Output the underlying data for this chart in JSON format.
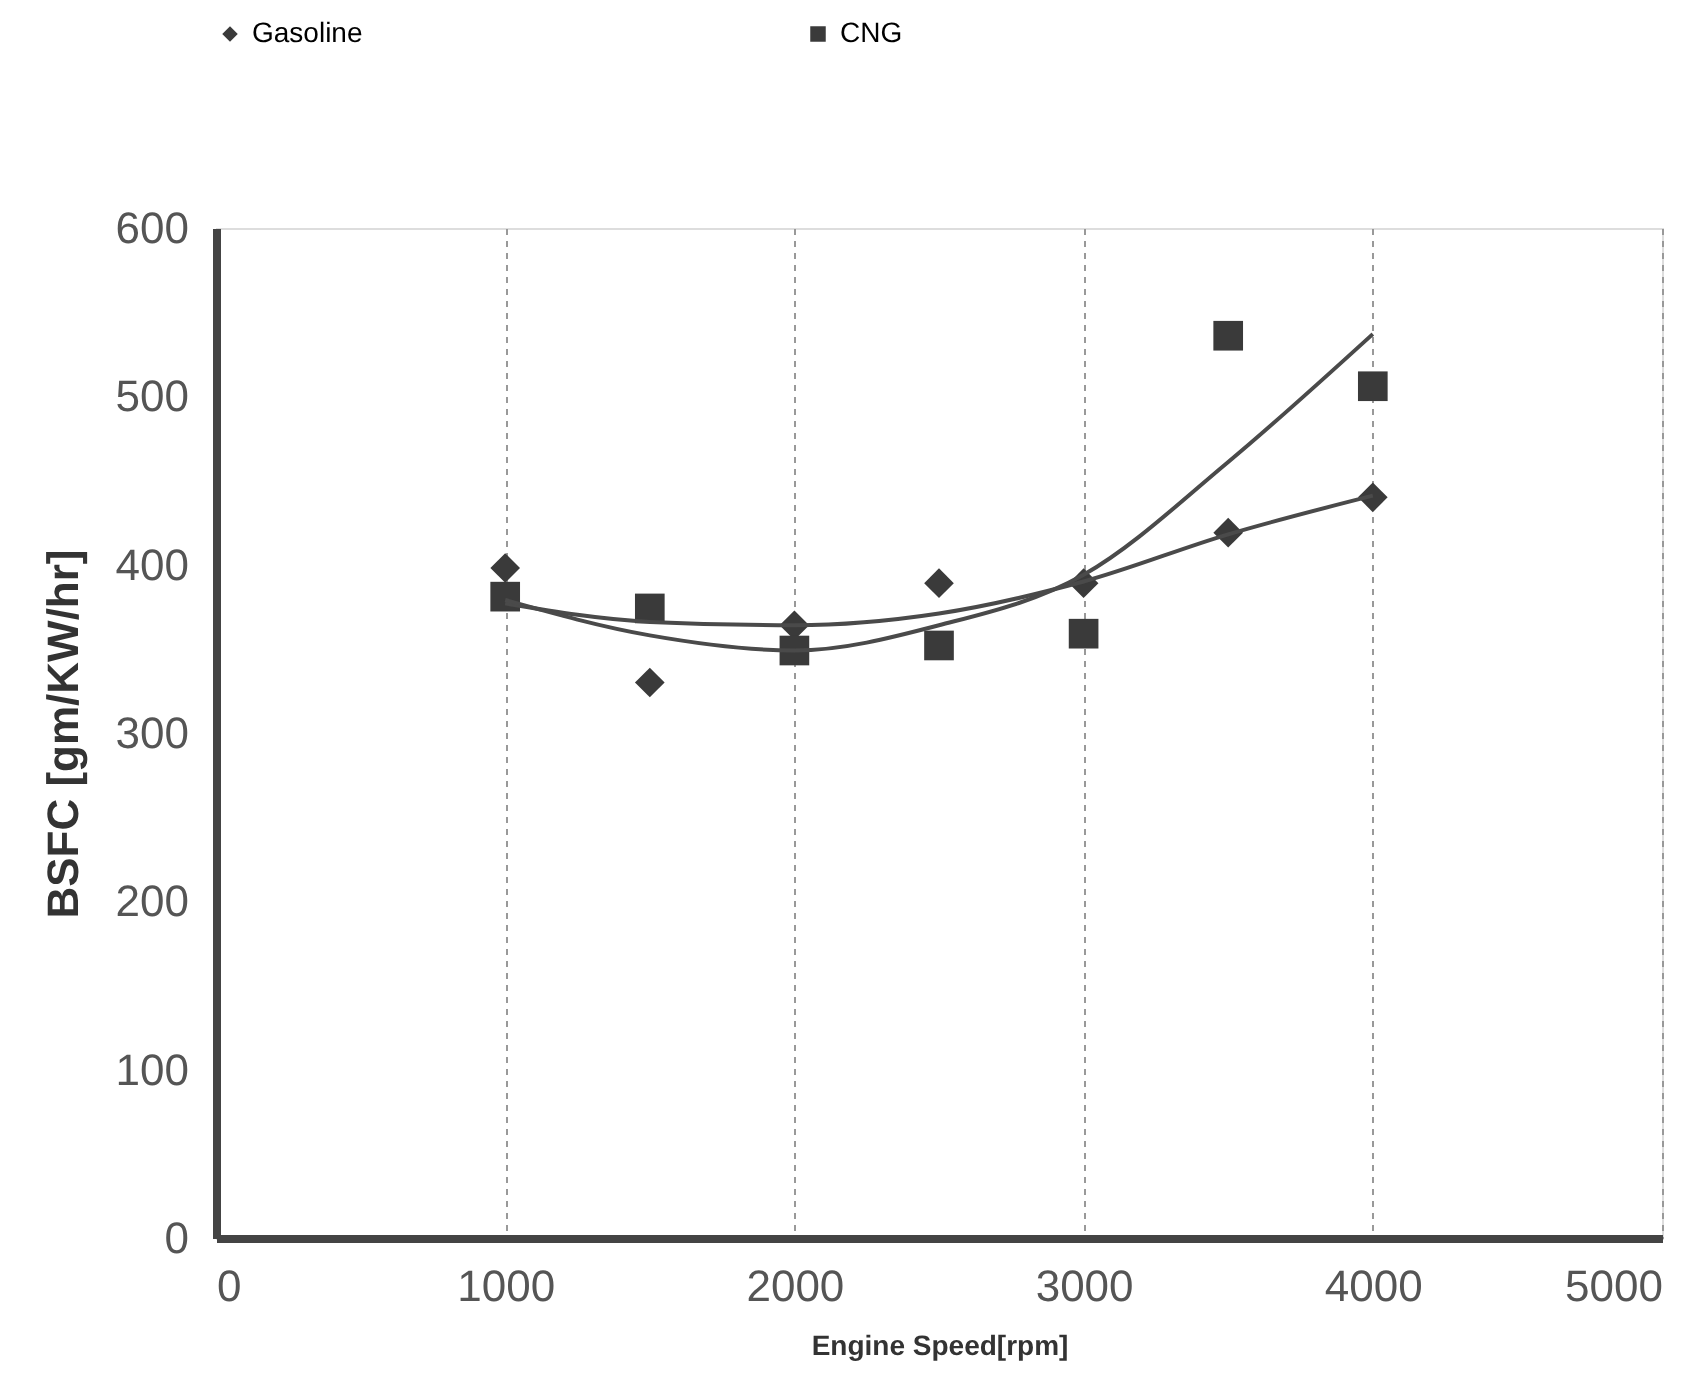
{
  "chart_data": {
    "type": "scatter",
    "xlabel": "Engine Speed[rpm]",
    "ylabel": "BSFC [gm/KW/hr]",
    "xlim": [
      0,
      5000
    ],
    "xticks": [
      0,
      1000,
      2000,
      3000,
      4000,
      5000
    ],
    "ylim": [
      0,
      600
    ],
    "yticks": [
      0,
      100,
      200,
      300,
      400,
      500,
      600
    ],
    "grid": "x",
    "legend": "top",
    "series": [
      {
        "name": "Gasoline",
        "color": "#3a3a3a",
        "marker": "diamond",
        "x": [
          1000,
          1500,
          2000,
          2500,
          3000,
          3500,
          4000
        ],
        "values": [
          398,
          330,
          364,
          389,
          389,
          419,
          440
        ]
      },
      {
        "name": "CNG",
        "color": "#3a3a3a",
        "marker": "square",
        "x": [
          1000,
          1500,
          2000,
          2500,
          3000,
          3500,
          4000
        ],
        "values": [
          381,
          374,
          349,
          352,
          359,
          536,
          506
        ]
      },
      {
        "type": "line",
        "color": "#4a4a4a",
        "x": [
          1000,
          1500,
          2000,
          2500,
          3000,
          3500,
          4000
        ],
        "values": [
          377,
          366,
          364,
          371,
          390,
          418,
          441
        ]
      },
      {
        "type": "line",
        "color": "#4a4a4a",
        "x": [
          1000,
          1500,
          2000,
          2500,
          3000,
          3500,
          4000
        ],
        "values": [
          379,
          358,
          349,
          364,
          394,
          461,
          537
        ]
      }
    ]
  }
}
